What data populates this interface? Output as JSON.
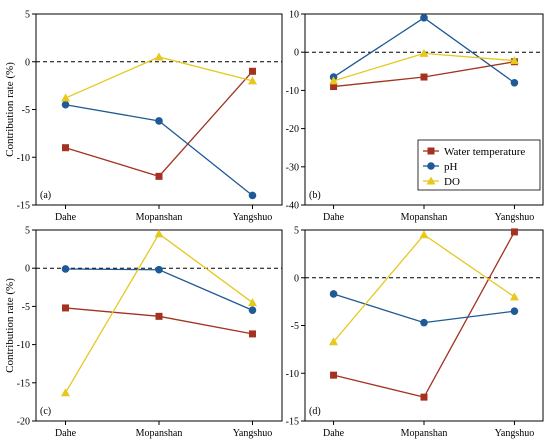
{
  "chart_data": [
    {
      "type": "line",
      "panel_label": "(a)",
      "categories": [
        "Dahe",
        "Mopanshan",
        "Yangshuo"
      ],
      "ylabel": "Contribution rate (%)",
      "ylim": [
        -15,
        5
      ],
      "yticks": [
        5,
        0,
        -5,
        -10,
        -15
      ],
      "zero_line": true,
      "series": [
        {
          "name": "Water temperature",
          "values": [
            -9.0,
            -12.0,
            -1.0
          ]
        },
        {
          "name": "pH",
          "values": [
            -4.5,
            -6.2,
            -14.0
          ]
        },
        {
          "name": "DO",
          "values": [
            -3.8,
            0.5,
            -2.0
          ]
        }
      ]
    },
    {
      "type": "line",
      "panel_label": "(b)",
      "categories": [
        "Dahe",
        "Mopanshan",
        "Yangshuo"
      ],
      "ylabel": "",
      "ylim": [
        -40,
        10
      ],
      "yticks": [
        10,
        0,
        -10,
        -20,
        -30,
        -40
      ],
      "zero_line": true,
      "series": [
        {
          "name": "Water temperature",
          "values": [
            -9.0,
            -6.5,
            -2.5
          ]
        },
        {
          "name": "pH",
          "values": [
            -6.5,
            9.0,
            -8.0
          ]
        },
        {
          "name": "DO",
          "values": [
            -7.5,
            -0.3,
            -2.2
          ]
        }
      ]
    },
    {
      "type": "line",
      "panel_label": "(c)",
      "categories": [
        "Dahe",
        "Mopanshan",
        "Yangshuo"
      ],
      "ylabel": "Contribution rate (%)",
      "ylim": [
        -20,
        5
      ],
      "yticks": [
        5,
        0,
        -5,
        -10,
        -15,
        -20
      ],
      "zero_line": true,
      "series": [
        {
          "name": "Water temperature",
          "values": [
            -5.2,
            -6.3,
            -8.6
          ]
        },
        {
          "name": "pH",
          "values": [
            -0.1,
            -0.2,
            -5.5
          ]
        },
        {
          "name": "DO",
          "values": [
            -16.3,
            4.5,
            -4.5
          ]
        }
      ]
    },
    {
      "type": "line",
      "panel_label": "(d)",
      "categories": [
        "Dahe",
        "Mopanshan",
        "Yangshuo"
      ],
      "ylabel": "",
      "ylim": [
        -15,
        5
      ],
      "yticks": [
        5,
        0,
        -5,
        -10,
        -15
      ],
      "zero_line": true,
      "series": [
        {
          "name": "Water temperature",
          "values": [
            -10.2,
            -12.5,
            4.8
          ]
        },
        {
          "name": "pH",
          "values": [
            -1.7,
            -4.7,
            -3.5
          ]
        },
        {
          "name": "DO",
          "values": [
            -6.7,
            4.5,
            -2.0
          ]
        }
      ]
    }
  ],
  "legend": {
    "placement": "inside panel (b), bottom-right",
    "items": [
      {
        "label": "Water temperature",
        "color": "#a33220",
        "marker": "square"
      },
      {
        "label": "pH",
        "color": "#1f5a96",
        "marker": "circle"
      },
      {
        "label": "DO",
        "color": "#e6c81e",
        "marker": "triangle"
      }
    ]
  },
  "colors": {
    "Water temperature": "#a33220",
    "pH": "#1f5a96",
    "DO": "#e6c81e"
  }
}
